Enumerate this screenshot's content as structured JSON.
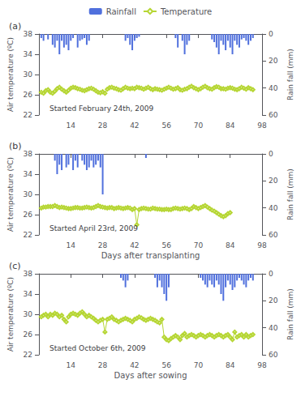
{
  "chart_data": [
    {
      "type": "combo",
      "title": "(a)",
      "subtitle": "Started February 24th, 2009",
      "ylabel": "Air temperature (ºC)",
      "y2label": "Rain fall (mm)",
      "xlim": [
        0,
        98
      ],
      "xticks": [
        14,
        28,
        42,
        56,
        70,
        84,
        98
      ],
      "ylim": [
        22,
        38
      ],
      "yticks": [
        22,
        26,
        30,
        34,
        38
      ],
      "y2lim": [
        60,
        0
      ],
      "y2ticks": [
        0,
        20,
        40,
        60
      ],
      "grid": false,
      "legend": "top",
      "series": [
        {
          "name": "Rainfall",
          "type": "bar",
          "axis": "y2",
          "x": [
            1,
            2,
            4,
            6,
            7,
            8,
            9,
            10,
            11,
            12,
            13,
            14,
            15,
            17,
            18,
            19,
            20,
            21,
            22,
            38,
            39,
            40,
            41,
            42,
            43,
            44,
            60,
            61,
            63,
            64,
            65,
            66,
            76,
            77,
            78,
            79,
            80,
            81,
            82,
            83,
            84,
            85,
            86,
            87,
            88,
            89,
            90,
            91,
            92,
            93,
            94
          ],
          "values": [
            3,
            5,
            4,
            8,
            10,
            5,
            15,
            5,
            10,
            8,
            12,
            5,
            3,
            10,
            5,
            4,
            3,
            8,
            5,
            5,
            3,
            8,
            12,
            5,
            3,
            2,
            3,
            10,
            5,
            15,
            8,
            5,
            4,
            6,
            10,
            15,
            5,
            8,
            12,
            5,
            10,
            15,
            5,
            8,
            10,
            4,
            3,
            5,
            8,
            5,
            3
          ]
        },
        {
          "name": "Temperature",
          "type": "line",
          "marker": "diamond",
          "x": [
            1,
            2,
            3,
            4,
            5,
            6,
            7,
            8,
            9,
            10,
            11,
            12,
            13,
            14,
            15,
            16,
            17,
            18,
            19,
            20,
            21,
            22,
            23,
            24,
            25,
            26,
            27,
            28,
            29,
            30,
            31,
            32,
            33,
            34,
            35,
            36,
            37,
            38,
            39,
            40,
            41,
            42,
            43,
            44,
            45,
            46,
            47,
            48,
            49,
            50,
            51,
            52,
            53,
            54,
            55,
            56,
            57,
            58,
            59,
            60,
            61,
            62,
            63,
            64,
            65,
            66,
            67,
            68,
            69,
            70,
            71,
            72,
            73,
            74,
            75,
            76,
            77,
            78,
            79,
            80,
            81,
            82,
            83,
            84,
            85,
            86,
            87,
            88,
            89,
            90,
            91,
            92,
            93,
            94
          ],
          "values": [
            26.5,
            26.3,
            26.8,
            27.0,
            26.5,
            26.3,
            26.7,
            27.2,
            27.5,
            27.1,
            26.8,
            26.5,
            26.9,
            27.3,
            27.5,
            27.4,
            27.2,
            27.1,
            26.9,
            26.8,
            27.0,
            27.2,
            27.3,
            27.1,
            26.8,
            26.5,
            26.4,
            26.6,
            26.3,
            27.1,
            27.4,
            27.5,
            27.3,
            27.2,
            27.0,
            26.9,
            27.2,
            27.5,
            27.3,
            27.2,
            27.3,
            27.2,
            27.5,
            27.4,
            27.3,
            27.1,
            27.3,
            27.5,
            27.2,
            27.0,
            27.2,
            27.1,
            27.0,
            26.9,
            27.1,
            27.3,
            27.5,
            27.3,
            27.1,
            27.2,
            27.4,
            27.0,
            26.9,
            27.1,
            27.2,
            27.5,
            27.7,
            27.4,
            27.2,
            27.0,
            27.2,
            27.5,
            27.7,
            27.4,
            27.2,
            27.1,
            27.4,
            27.6,
            27.5,
            27.2,
            27.2,
            27.1,
            27.3,
            27.4,
            27.3,
            27.1,
            27.0,
            27.2,
            27.5,
            27.3,
            27.1,
            27.4,
            27.2,
            27.0
          ]
        }
      ]
    },
    {
      "type": "combo",
      "title": "(b)",
      "subtitle": "Started April 23rd, 2009",
      "xlabel": "Days after transplanting",
      "ylabel": "Air temperature (ºC)",
      "y2label": "Rain fall (mm)",
      "xlim": [
        0,
        98
      ],
      "xticks": [
        14,
        28,
        42,
        56,
        70,
        84,
        98
      ],
      "ylim": [
        22,
        38
      ],
      "yticks": [
        22,
        26,
        30,
        34,
        38
      ],
      "y2lim": [
        60,
        0
      ],
      "y2ticks": [
        0,
        20,
        40,
        60
      ],
      "grid": false,
      "series": [
        {
          "name": "Rainfall",
          "type": "bar",
          "axis": "y2",
          "x": [
            7,
            8,
            9,
            10,
            12,
            13,
            15,
            16,
            17,
            19,
            20,
            21,
            22,
            23,
            24,
            25,
            26,
            27,
            28,
            47
          ],
          "values": [
            5,
            15,
            8,
            12,
            10,
            8,
            12,
            5,
            10,
            5,
            8,
            12,
            10,
            5,
            10,
            8,
            5,
            10,
            30,
            3
          ]
        },
        {
          "name": "Temperature",
          "type": "line",
          "marker": "diamond",
          "x": [
            1,
            2,
            3,
            4,
            5,
            6,
            7,
            8,
            9,
            10,
            11,
            12,
            13,
            14,
            15,
            16,
            17,
            18,
            19,
            20,
            21,
            22,
            23,
            24,
            25,
            26,
            27,
            28,
            29,
            30,
            31,
            32,
            33,
            34,
            35,
            36,
            37,
            38,
            39,
            40,
            41,
            42,
            43,
            44,
            45,
            46,
            47,
            48,
            49,
            50,
            51,
            52,
            53,
            54,
            55,
            56,
            57,
            58,
            59,
            60,
            61,
            62,
            63,
            64,
            65,
            66,
            67,
            68,
            69,
            70,
            71,
            72,
            73,
            74,
            75,
            76,
            77,
            78,
            79,
            80,
            81,
            82,
            83,
            84
          ],
          "values": [
            27.3,
            27.5,
            27.5,
            27.6,
            27.6,
            27.6,
            27.8,
            27.6,
            27.4,
            27.5,
            27.4,
            27.3,
            27.2,
            27.2,
            27.3,
            27.4,
            27.4,
            27.3,
            27.3,
            27.4,
            27.5,
            27.4,
            27.3,
            27.4,
            27.6,
            27.8,
            27.6,
            27.5,
            27.4,
            27.3,
            27.4,
            27.4,
            27.2,
            27.3,
            27.4,
            27.3,
            27.2,
            27.3,
            27.4,
            27.3,
            27.0,
            27.2,
            24.0,
            27.0,
            27.2,
            27.3,
            27.2,
            27.1,
            27.1,
            27.3,
            27.2,
            27.1,
            27.1,
            27.0,
            27.0,
            27.1,
            27.0,
            27.0,
            27.2,
            27.3,
            27.2,
            27.1,
            27.2,
            27.3,
            27.2,
            27.0,
            27.2,
            27.6,
            27.4,
            27.2,
            27.4,
            27.6,
            27.8,
            27.5,
            27.2,
            26.9,
            26.7,
            26.4,
            26.1,
            25.8,
            25.6,
            25.8,
            26.2,
            26.4
          ]
        }
      ]
    },
    {
      "type": "combo",
      "title": "(c)",
      "subtitle": "Started October 6th, 2009",
      "xlabel": "Days after sowing",
      "ylabel": "Air temperature (ºC)",
      "y2label": "Rain fall (mm)",
      "xlim": [
        0,
        98
      ],
      "xticks": [
        14,
        28,
        42,
        56,
        70,
        84,
        98
      ],
      "ylim": [
        22,
        38
      ],
      "yticks": [
        22,
        26,
        30,
        34,
        38
      ],
      "y2lim": [
        60,
        0
      ],
      "y2ticks": [
        0,
        20,
        40,
        60
      ],
      "grid": false,
      "series": [
        {
          "name": "Rainfall",
          "type": "bar",
          "axis": "y2",
          "x": [
            36,
            37,
            38,
            39,
            51,
            52,
            53,
            54,
            55,
            56,
            57,
            71,
            72,
            73,
            74,
            75,
            76,
            77,
            78,
            79,
            80,
            81,
            82,
            83,
            84,
            85,
            86,
            87,
            88,
            89,
            90,
            91,
            92,
            93,
            94
          ],
          "values": [
            3,
            5,
            10,
            5,
            3,
            10,
            5,
            10,
            15,
            20,
            10,
            3,
            5,
            8,
            10,
            5,
            8,
            10,
            5,
            8,
            15,
            20,
            10,
            5,
            8,
            12,
            10,
            5,
            3,
            5,
            8,
            10,
            5,
            3,
            5
          ]
        },
        {
          "name": "Temperature",
          "type": "line",
          "marker": "diamond",
          "x": [
            1,
            2,
            3,
            4,
            5,
            6,
            7,
            8,
            9,
            10,
            11,
            12,
            13,
            14,
            15,
            16,
            17,
            18,
            19,
            20,
            21,
            22,
            23,
            24,
            25,
            26,
            27,
            28,
            29,
            30,
            31,
            32,
            33,
            34,
            35,
            36,
            37,
            38,
            39,
            40,
            41,
            42,
            43,
            44,
            45,
            46,
            47,
            48,
            49,
            50,
            51,
            52,
            53,
            54,
            55,
            56,
            57,
            58,
            59,
            60,
            61,
            62,
            63,
            64,
            65,
            66,
            67,
            68,
            69,
            70,
            71,
            72,
            73,
            74,
            75,
            76,
            77,
            78,
            79,
            80,
            81,
            82,
            83,
            84,
            85,
            86,
            87,
            88,
            89,
            90,
            91,
            92,
            93,
            94
          ],
          "values": [
            29.5,
            29.8,
            30.0,
            29.5,
            30.0,
            29.8,
            30.2,
            30.0,
            29.5,
            29.8,
            29.0,
            28.5,
            29.5,
            30.0,
            30.2,
            30.0,
            29.8,
            30.2,
            30.5,
            30.0,
            29.5,
            29.8,
            29.5,
            29.2,
            28.8,
            28.5,
            28.8,
            29.0,
            26.5,
            29.0,
            29.2,
            29.5,
            29.0,
            28.8,
            28.5,
            28.8,
            29.0,
            29.2,
            29.0,
            28.8,
            28.5,
            29.0,
            29.2,
            29.5,
            29.3,
            29.0,
            28.8,
            29.0,
            29.2,
            29.0,
            28.8,
            28.5,
            28.3,
            29.0,
            25.5,
            25.0,
            24.8,
            25.2,
            25.5,
            25.8,
            25.5,
            25.0,
            25.8,
            26.2,
            25.5,
            25.8,
            26.0,
            25.8,
            25.5,
            25.8,
            26.0,
            25.8,
            25.5,
            25.8,
            26.0,
            25.8,
            25.5,
            25.8,
            26.0,
            25.8,
            25.5,
            25.8,
            26.0,
            25.5,
            25.0,
            26.5,
            25.5,
            25.8,
            26.0,
            25.5,
            26.0,
            25.5,
            25.8,
            26.0
          ]
        }
      ]
    }
  ]
}
